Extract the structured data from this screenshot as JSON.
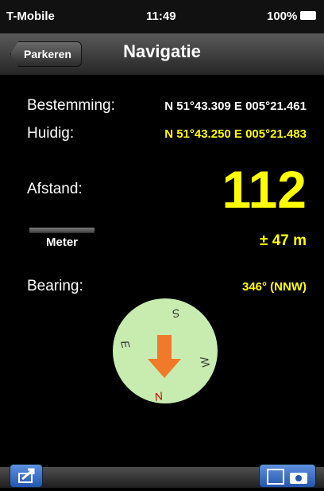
{
  "status_bar": {
    "carrier": "T-Mobile",
    "time": "11:49",
    "battery": "100%"
  },
  "nav_bar": {
    "back": "Parkeren",
    "title": "Navigatie"
  },
  "rows": [
    {
      "label": "Bestemming:",
      "value": "N 51°43.309 E 005°21.461"
    },
    {
      "label": "Huidig:",
      "value": "N 51°43.250 E 005°21.483"
    }
  ],
  "distance": {
    "label": "Afstand:",
    "value": "112",
    "unit_button": "Meter",
    "accuracy": "± 47 m"
  },
  "bearing": {
    "label": "Bearing:",
    "value": "346° (NNW)"
  },
  "compass": {
    "north": "N",
    "east": "E",
    "south": "S",
    "west": "W"
  }
}
